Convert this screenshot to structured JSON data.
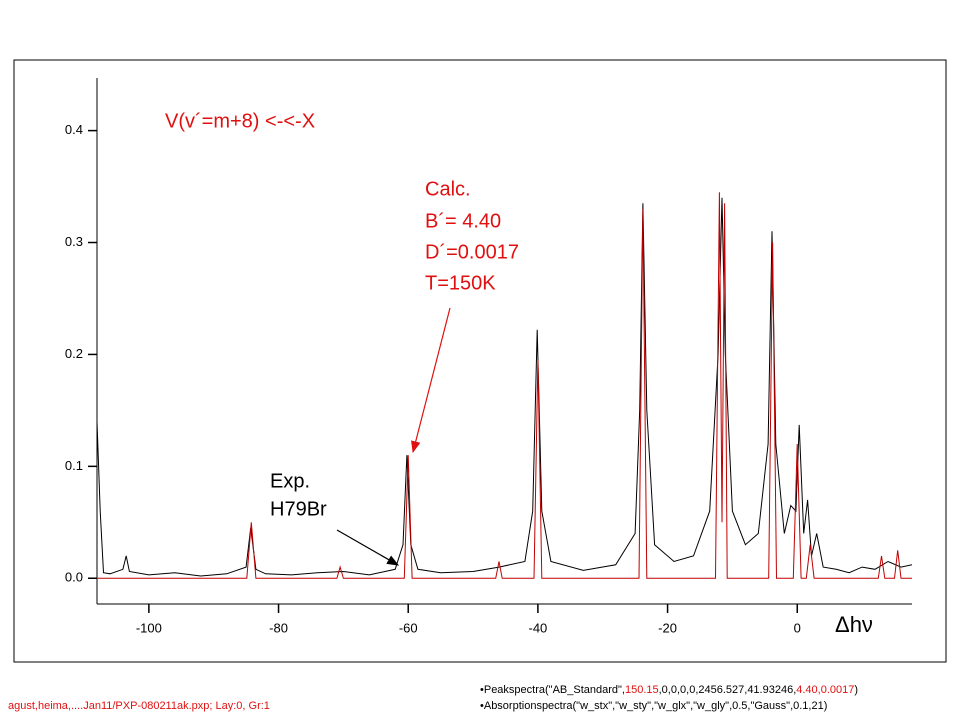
{
  "chart_data": {
    "type": "line",
    "title": "V(v´=m+8) <-<-X",
    "annotations": {
      "calc": [
        "Calc.",
        "B´= 4.40",
        "D´=0.0017",
        "T=150K"
      ],
      "exp": [
        "Exp.",
        "H79Br"
      ]
    },
    "x_label": "Δhν",
    "xlim": [
      -108,
      17.7
    ],
    "ylim": [
      -0.023,
      0.447
    ],
    "xticks": [
      -100,
      -80,
      -60,
      -40,
      -20,
      0
    ],
    "yticks": [
      {
        "value": 0,
        "label": "0.0"
      },
      0.1,
      0.2,
      0.3,
      0.4
    ],
    "series": [
      {
        "name": "Exp.",
        "color": "#000000",
        "x": [
          -108,
          -107.5,
          -107,
          -106,
          -104,
          -103.5,
          -103,
          -100,
          -96,
          -92,
          -88,
          -85,
          -84.3,
          -83.5,
          -82,
          -78,
          -74,
          -70,
          -66,
          -62,
          -60.8,
          -60.2,
          -59.6,
          -58.5,
          -55,
          -50,
          -46,
          -42,
          -40.8,
          -40.1,
          -39.4,
          -38,
          -33,
          -28,
          -25,
          -24.3,
          -23.8,
          -23.2,
          -22,
          -19,
          -16,
          -13.5,
          -12.2,
          -11.6,
          -11.1,
          -10,
          -8,
          -6,
          -4.5,
          -3.9,
          -3.3,
          -2,
          -1,
          -0.2,
          0.3,
          1,
          1.6,
          2.2,
          3,
          4,
          6,
          8,
          10,
          12,
          14,
          16,
          17.7
        ],
        "values": [
          0.14,
          0.06,
          0.005,
          0.004,
          0.008,
          0.02,
          0.006,
          0.003,
          0.005,
          0.002,
          0.004,
          0.01,
          0.045,
          0.008,
          0.004,
          0.003,
          0.005,
          0.006,
          0.003,
          0.008,
          0.03,
          0.11,
          0.03,
          0.008,
          0.005,
          0.006,
          0.01,
          0.015,
          0.06,
          0.222,
          0.06,
          0.015,
          0.007,
          0.012,
          0.04,
          0.15,
          0.335,
          0.15,
          0.03,
          0.015,
          0.02,
          0.06,
          0.2,
          0.34,
          0.2,
          0.06,
          0.03,
          0.04,
          0.12,
          0.31,
          0.12,
          0.04,
          0.065,
          0.06,
          0.137,
          0.04,
          0.07,
          0.02,
          0.04,
          0.01,
          0.008,
          0.005,
          0.01,
          0.008,
          0.015,
          0.01,
          0.012
        ]
      },
      {
        "name": "Calc.",
        "color": "#c00000",
        "x": [
          -108,
          -84.9,
          -84.2,
          -83.5,
          -71,
          -70.5,
          -70,
          -60.6,
          -60,
          -59.4,
          -46.5,
          -46,
          -45.5,
          -40.6,
          -40,
          -39.4,
          -24.4,
          -23.8,
          -23.2,
          -12.6,
          -12,
          -11.6,
          -11.2,
          -10.8,
          -4.4,
          -3.8,
          -3.2,
          -0.6,
          0,
          0.6,
          1.4,
          2,
          2.6,
          12.5,
          13,
          13.5,
          15,
          15.5,
          16,
          17.7
        ],
        "values": [
          0,
          0,
          0.05,
          0,
          0,
          0.01,
          0,
          0,
          0.11,
          0,
          0,
          0.015,
          0,
          0,
          0.195,
          0,
          0,
          0.33,
          0,
          0,
          0.345,
          0.05,
          0.335,
          0,
          0,
          0.3,
          0,
          0,
          0.12,
          0,
          0,
          0.03,
          0,
          0,
          0.02,
          0,
          0,
          0.025,
          0,
          0
        ]
      }
    ],
    "footer": {
      "source": "agust,heima,....Jan11/PXP-080211ak.pxp; Lay:0, Gr:1",
      "line1": [
        "•Peakspectra(\"AB_Standard\",",
        "150.15",
        ",0,0,0,0,2456.527,41.93246,",
        "4.40,0.0017",
        ")"
      ],
      "line2": "•Absorptionspectra(\"w_stx\",\"w_sty\",\"w_glx\",\"w_gly\",0.5,\"Gauss\",0.1,21)"
    }
  }
}
